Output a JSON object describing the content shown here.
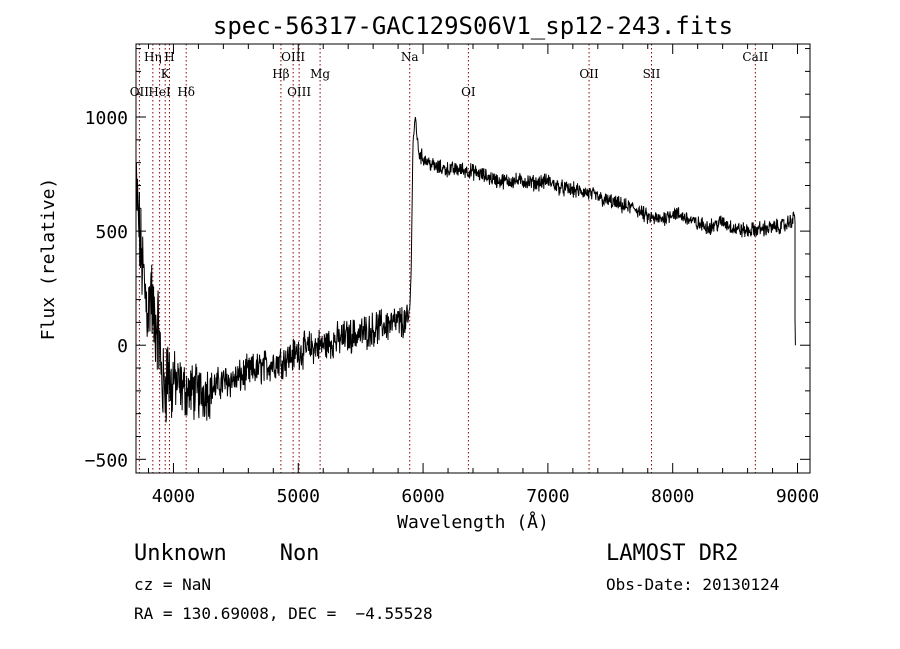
{
  "chart_data": {
    "type": "line",
    "title": "spec-56317-GAC129S06V1_sp12-243.fits",
    "xlabel": "Wavelength (Å)",
    "ylabel": "Flux (relative)",
    "xlim": [
      3700,
      9100
    ],
    "ylim": [
      -560,
      1320
    ],
    "x_ticks": [
      4000,
      5000,
      6000,
      7000,
      8000,
      9000
    ],
    "y_ticks": [
      -500,
      0,
      500,
      1000
    ],
    "x_minor_step": 200,
    "y_minor_step": 100,
    "grid": false,
    "line_color": "#000000",
    "marker_color": "#8b0000",
    "series": [
      {
        "x": [
          3700,
          3720,
          3740,
          3760,
          3780,
          3800,
          3820,
          3840,
          3860,
          3880,
          3900,
          3920,
          3940,
          3960,
          3980,
          4000,
          4050,
          4100,
          4150,
          4200,
          4300,
          4400,
          4500,
          4600,
          4700,
          4800,
          4850,
          4900,
          5000,
          5100,
          5200,
          5300,
          5400,
          5500,
          5600,
          5700,
          5800,
          5880,
          5900,
          5920,
          5940,
          5960,
          5980,
          6000,
          6050,
          6100,
          6200,
          6300,
          6400,
          6500,
          6560,
          6600,
          6700,
          6800,
          6900,
          7000,
          7100,
          7200,
          7300,
          7400,
          7450,
          7500,
          7600,
          7700,
          7800,
          7900,
          8000,
          8100,
          8200,
          8300,
          8400,
          8500,
          8600,
          8700,
          8800,
          8900,
          8980
        ],
        "y": [
          700,
          550,
          400,
          300,
          200,
          150,
          250,
          100,
          100,
          60,
          -100,
          -200,
          -150,
          -100,
          -200,
          -150,
          -180,
          -200,
          -200,
          -210,
          -190,
          -160,
          -150,
          -120,
          -100,
          -80,
          -70,
          -60,
          -30,
          -10,
          0,
          20,
          40,
          50,
          70,
          90,
          100,
          100,
          200,
          900,
          1000,
          860,
          830,
          820,
          800,
          780,
          770,
          770,
          760,
          740,
          730,
          720,
          720,
          720,
          710,
          720,
          690,
          680,
          670,
          650,
          635,
          630,
          610,
          600,
          560,
          550,
          580,
          560,
          530,
          520,
          540,
          510,
          500,
          510,
          515,
          525,
          560
        ]
      }
    ],
    "lines": [
      {
        "label": "OII",
        "x": 3727,
        "row": 3
      },
      {
        "label": "Hη",
        "x": 3835,
        "row": 1
      },
      {
        "label": "HeI",
        "x": 3889,
        "row": 3
      },
      {
        "label": "K",
        "x": 3934,
        "row": 2
      },
      {
        "label": "H",
        "x": 3968,
        "row": 1
      },
      {
        "label": "Hδ",
        "x": 4102,
        "row": 3
      },
      {
        "label": "Hβ",
        "x": 4861,
        "row": 2
      },
      {
        "label": "OIII",
        "x": 4959,
        "row": 1
      },
      {
        "label": "OIII",
        "x": 5007,
        "row": 3
      },
      {
        "label": "Mg",
        "x": 5175,
        "row": 2
      },
      {
        "label": "Na",
        "x": 5893,
        "row": 1
      },
      {
        "label": "OI",
        "x": 6363,
        "row": 3
      },
      {
        "label": "OII",
        "x": 7330,
        "row": 2
      },
      {
        "label": "SII",
        "x": 7830,
        "row": 2
      },
      {
        "label": "CaII",
        "x": 8662,
        "row": 1
      }
    ]
  },
  "footer": {
    "left_title": "Unknown    Non",
    "cz": "cz = NaN",
    "radec": "RA = 130.69008, DEC =  −4.55528",
    "right_title": "LAMOST DR2",
    "obs_date": "Obs-Date: 20130124"
  }
}
